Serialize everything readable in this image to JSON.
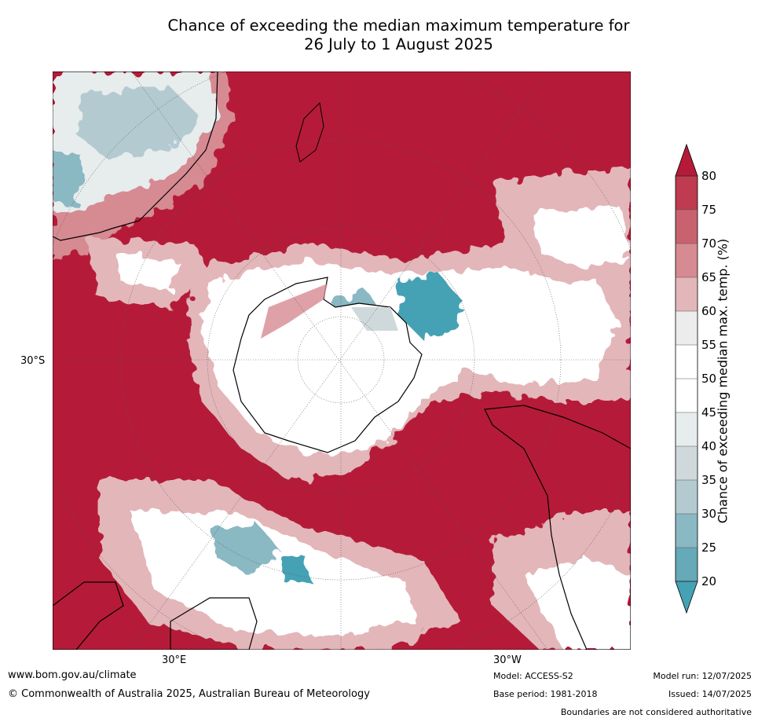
{
  "title_line1": "Chance of exceeding the median maximum temperature for",
  "title_line2": "26 July to 1 August 2025",
  "axis": {
    "lat_label": "30°S",
    "lon_label_left": "30°E",
    "lon_label_right": "30°W"
  },
  "colorbar": {
    "label": "Chance of exceeding median max. temp. (%)",
    "ticks": [
      "80",
      "75",
      "70",
      "65",
      "60",
      "55",
      "50",
      "45",
      "40",
      "35",
      "30",
      "25",
      "20"
    ],
    "bins": [
      {
        "range": "above 80",
        "color": "#b51b38"
      },
      {
        "range": "75-80",
        "color": "#bf3b50"
      },
      {
        "range": "70-75",
        "color": "#c9626f"
      },
      {
        "range": "65-70",
        "color": "#d68a92"
      },
      {
        "range": "60-65",
        "color": "#e3b6ba"
      },
      {
        "range": "55-60",
        "color": "#ececec"
      },
      {
        "range": "50-55",
        "color": "#ffffff"
      },
      {
        "range": "45-50",
        "color": "#ffffff"
      },
      {
        "range": "40-45",
        "color": "#e7eced"
      },
      {
        "range": "35-40",
        "color": "#cfd9db"
      },
      {
        "range": "30-35",
        "color": "#b3cbd0"
      },
      {
        "range": "25-30",
        "color": "#8ab8c3"
      },
      {
        "range": "20-25",
        "color": "#66a9b8"
      },
      {
        "range": "below 20",
        "color": "#45a2b4"
      }
    ]
  },
  "footer": {
    "website": "www.bom.gov.au/climate",
    "copyright": "© Commonwealth of Australia 2025, Australian Bureau of Meteorology",
    "model": "Model: ACCESS-S2",
    "base_period": "Base period: 1981-2018",
    "model_run": "Model run: 12/07/2025",
    "issued": "Issued: 14/07/2025",
    "disclaimer": "Boundaries are not considered authoritative"
  }
}
